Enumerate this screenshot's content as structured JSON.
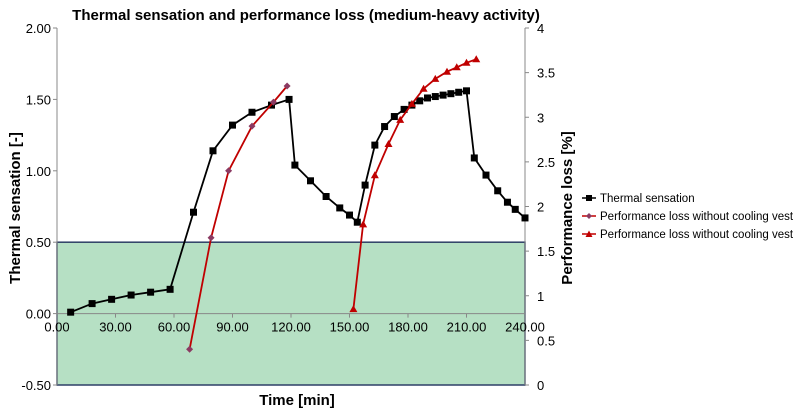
{
  "chart_data": {
    "type": "line",
    "title": "Thermal sensation and performance loss (medium-heavy activity)",
    "xlabel": "Time [min]",
    "ylabel": "Thermal sensation [-]",
    "y2label": "Performance loss [%]",
    "xlim": [
      0,
      240
    ],
    "ylim": [
      -0.5,
      2.0
    ],
    "y2lim": [
      0,
      4
    ],
    "xticks": [
      "0.00",
      "30.00",
      "60.00",
      "90.00",
      "120.00",
      "150.00",
      "180.00",
      "210.00",
      "240.00"
    ],
    "yticks": [
      "-0.50",
      "0.00",
      "0.50",
      "1.00",
      "1.50",
      "2.00"
    ],
    "y2ticks": [
      "0",
      "0.5",
      "1",
      "1.5",
      "2",
      "2.5",
      "3",
      "3.5",
      "4"
    ],
    "comfort_band": {
      "y_from": -0.5,
      "y_to": 0.5,
      "color": "#b6e0c4"
    },
    "legend_position": "right",
    "series": [
      {
        "name": "Thermal sensation",
        "axis": "left",
        "color": "#000000",
        "marker": "square",
        "x": [
          7,
          18,
          28,
          38,
          48,
          58,
          70,
          80,
          90,
          100,
          110,
          119,
          122,
          130,
          138,
          145,
          150,
          154,
          158,
          163,
          168,
          173,
          178,
          182,
          186,
          190,
          194,
          198,
          202,
          206,
          210,
          214,
          220,
          226,
          231,
          235,
          240
        ],
        "y": [
          0.01,
          0.07,
          0.1,
          0.13,
          0.15,
          0.17,
          0.71,
          1.14,
          1.32,
          1.41,
          1.46,
          1.5,
          1.04,
          0.93,
          0.82,
          0.74,
          0.69,
          0.64,
          0.9,
          1.18,
          1.31,
          1.38,
          1.43,
          1.46,
          1.49,
          1.51,
          1.52,
          1.53,
          1.54,
          1.55,
          1.56,
          1.09,
          0.97,
          0.86,
          0.78,
          0.73,
          0.67
        ]
      },
      {
        "name": "Performance loss without cooling vest",
        "axis": "right",
        "color": "#c00000",
        "line_color": "#c00000",
        "marker": "diamond",
        "marker_color": "#8b3a62",
        "x": [
          68,
          79,
          88,
          100,
          111,
          118
        ],
        "y": [
          0.4,
          1.65,
          2.4,
          2.9,
          3.17,
          3.35
        ]
      },
      {
        "name": "Performance loss without cooling vest",
        "axis": "right",
        "color": "#c00000",
        "marker": "triangle",
        "x": [
          152,
          157,
          163,
          170,
          176,
          182,
          188,
          194,
          200,
          205,
          210,
          215
        ],
        "y": [
          0.85,
          1.8,
          2.35,
          2.7,
          2.97,
          3.15,
          3.32,
          3.43,
          3.51,
          3.56,
          3.61,
          3.65
        ]
      }
    ]
  }
}
